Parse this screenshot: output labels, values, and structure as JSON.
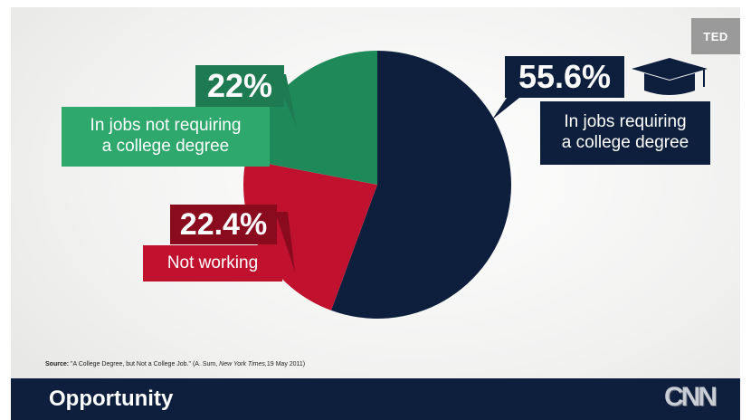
{
  "badge": "TED",
  "chart_data": {
    "type": "pie",
    "slices": [
      {
        "label_lines": [
          "In jobs requiring",
          "a college degree"
        ],
        "value": 55.6,
        "value_text": "55.6%",
        "color": "#0e1f3d",
        "label_color": "#0e1f3d",
        "arrow_color": "#0e1f3d"
      },
      {
        "label_lines": [
          "Not working"
        ],
        "value": 22.4,
        "value_text": "22.4%",
        "color": "#c0122f",
        "label_color": "#c0122f",
        "arrow_color": "#8a0a1e"
      },
      {
        "label_lines": [
          "In jobs not requiring",
          "a college degree"
        ],
        "value": 22,
        "value_text": "22%",
        "color": "#1e8a5a",
        "label_color": "#2ea86c",
        "arrow_color": "#1e7a50"
      }
    ]
  },
  "source": {
    "label": "Source:",
    "text": "\"A College Degree, but Not a College Job.\" (A. Sum,",
    "publication": "New York Times,",
    "date": "19 May 2011)"
  },
  "footer": {
    "title": "Opportunity",
    "logo": "CNN"
  }
}
